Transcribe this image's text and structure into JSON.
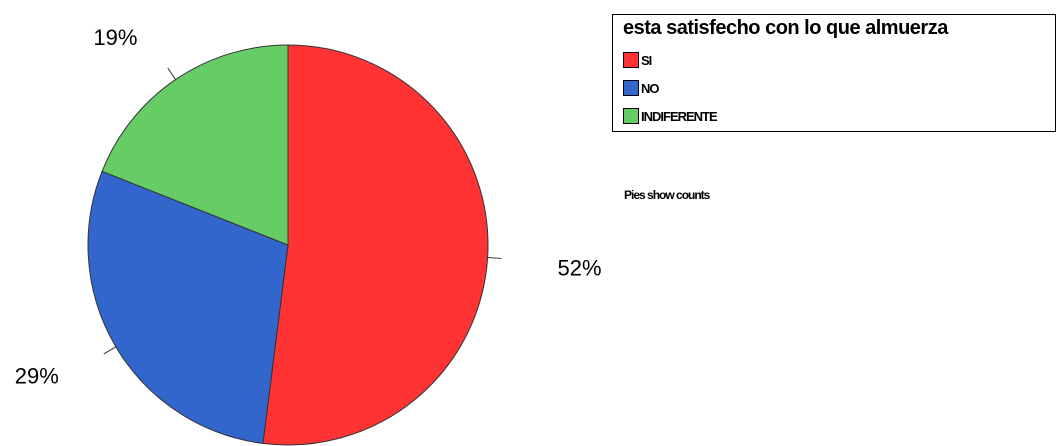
{
  "chart_data": {
    "type": "pie",
    "title": "esta satisfecho con lo que almuerza",
    "categories": [
      "SI",
      "NO",
      "INDIFERENTE"
    ],
    "values": [
      52,
      29,
      19
    ],
    "data_labels": [
      "52%",
      "29%",
      "19%"
    ],
    "colors": [
      "#ff3333",
      "#3366cc",
      "#66cc66"
    ],
    "legend": {
      "title": "esta satisfecho con lo que almuerza",
      "placement": "top-right",
      "entries": [
        {
          "label": "SI",
          "color": "#ff3333"
        },
        {
          "label": "NO",
          "color": "#3366cc"
        },
        {
          "label": "INDIFERENTE",
          "color": "#66cc66"
        }
      ]
    },
    "footnote": "Pies show counts"
  }
}
